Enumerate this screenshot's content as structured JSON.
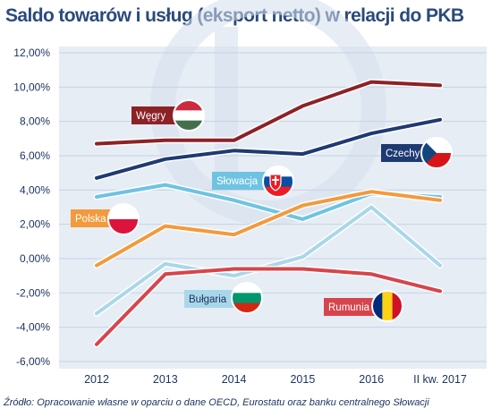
{
  "title": "Saldo towarów i usług (eksport netto) w relacji do PKB",
  "source": "Źródło: Opracowanie własne w oparciu o dane OECD, Eurostatu oraz banku centralnego Słowacji",
  "chart_data": {
    "type": "line",
    "x": [
      "2012",
      "2013",
      "2014",
      "2015",
      "2016",
      "II kw. 2017"
    ],
    "ylim": [
      -6,
      12
    ],
    "yticks": [
      "-6,00%",
      "-4,00%",
      "-2,00%",
      "0,00%",
      "2,00%",
      "4,00%",
      "6,00%",
      "8,00%",
      "10,00%",
      "12,00%"
    ],
    "grid": "horizontal",
    "series": [
      {
        "name": "Węgry",
        "flag": "hungary",
        "color": "#8c2226",
        "values": [
          6.7,
          6.9,
          6.9,
          8.9,
          10.3,
          10.1
        ]
      },
      {
        "name": "Czechy",
        "flag": "czech",
        "color": "#1e3a73",
        "values": [
          4.7,
          5.8,
          6.3,
          6.1,
          7.3,
          8.1
        ]
      },
      {
        "name": "Słowacja",
        "flag": "slovakia",
        "color": "#6ec3e2",
        "values": [
          3.6,
          4.3,
          3.4,
          2.3,
          3.8,
          3.6
        ]
      },
      {
        "name": "Polska",
        "flag": "poland",
        "color": "#f39a3c",
        "values": [
          -0.4,
          1.9,
          1.4,
          3.1,
          3.9,
          3.4
        ]
      },
      {
        "name": "Bułgaria",
        "flag": "bulgaria",
        "color": "#a9d7ea",
        "values": [
          -3.2,
          -0.3,
          -1.0,
          0.1,
          3.0,
          -0.4
        ]
      },
      {
        "name": "Rumunia",
        "flag": "romania",
        "color": "#d6454c",
        "values": [
          -5.0,
          -0.9,
          -0.6,
          -0.6,
          -0.9,
          -1.9
        ]
      }
    ]
  }
}
